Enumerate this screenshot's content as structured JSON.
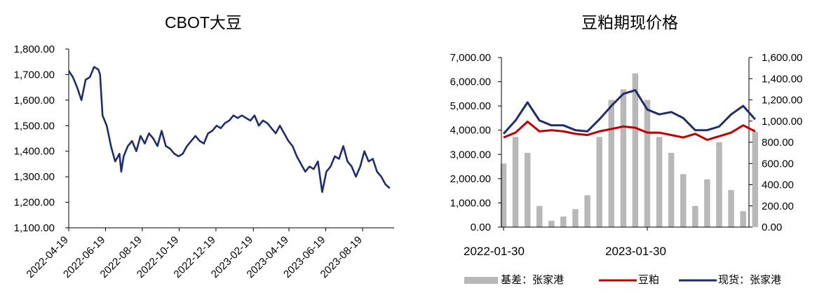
{
  "chart_data": [
    {
      "type": "line",
      "title": "CBOT大豆",
      "xlabel": "",
      "ylabel": "",
      "ylim": [
        1100,
        1800
      ],
      "y_ticks": [
        "1,100.00",
        "1,200.00",
        "1,300.00",
        "1,400.00",
        "1,500.00",
        "1,600.00",
        "1,700.00",
        "1,800.00"
      ],
      "x_ticks": [
        "2022-04-19",
        "2022-06-19",
        "2022-08-19",
        "2022-10-19",
        "2022-12-19",
        "2023-02-19",
        "2023-04-19",
        "2023-06-19",
        "2023-08-19"
      ],
      "grid": false,
      "colors": {
        "line": "#1f2d6b"
      },
      "series": [
        {
          "x": [
            "2022-04-19",
            "2022-04-26",
            "2022-05-03",
            "2022-05-10",
            "2022-05-17",
            "2022-05-24",
            "2022-05-31",
            "2022-06-07",
            "2022-06-10",
            "2022-06-14",
            "2022-06-21",
            "2022-06-28",
            "2022-07-05",
            "2022-07-12",
            "2022-07-15",
            "2022-07-19",
            "2022-07-26",
            "2022-08-02",
            "2022-08-09",
            "2022-08-16",
            "2022-08-23",
            "2022-08-30",
            "2022-09-06",
            "2022-09-13",
            "2022-09-20",
            "2022-09-27",
            "2022-10-04",
            "2022-10-11",
            "2022-10-18",
            "2022-10-25",
            "2022-11-01",
            "2022-11-08",
            "2022-11-15",
            "2022-11-22",
            "2022-11-29",
            "2022-12-06",
            "2022-12-13",
            "2022-12-20",
            "2022-12-27",
            "2023-01-03",
            "2023-01-10",
            "2023-01-17",
            "2023-01-24",
            "2023-01-31",
            "2023-02-07",
            "2023-02-14",
            "2023-02-21",
            "2023-02-28",
            "2023-03-07",
            "2023-03-14",
            "2023-03-21",
            "2023-03-28",
            "2023-04-04",
            "2023-04-11",
            "2023-04-18",
            "2023-04-25",
            "2023-05-02",
            "2023-05-09",
            "2023-05-16",
            "2023-05-23",
            "2023-05-30",
            "2023-06-06",
            "2023-06-13",
            "2023-06-20",
            "2023-06-27",
            "2023-07-04",
            "2023-07-11",
            "2023-07-18",
            "2023-07-25",
            "2023-08-01",
            "2023-08-08",
            "2023-08-15",
            "2023-08-22",
            "2023-08-29",
            "2023-09-05",
            "2023-09-12",
            "2023-09-19",
            "2023-09-26",
            "2023-10-03"
          ],
          "values": [
            1715,
            1690,
            1650,
            1600,
            1680,
            1690,
            1730,
            1720,
            1700,
            1540,
            1500,
            1420,
            1360,
            1390,
            1320,
            1380,
            1420,
            1440,
            1400,
            1460,
            1430,
            1470,
            1450,
            1420,
            1480,
            1420,
            1410,
            1390,
            1380,
            1390,
            1420,
            1440,
            1460,
            1440,
            1430,
            1470,
            1480,
            1500,
            1490,
            1510,
            1520,
            1540,
            1530,
            1540,
            1530,
            1520,
            1540,
            1500,
            1520,
            1510,
            1490,
            1470,
            1500,
            1470,
            1440,
            1420,
            1380,
            1350,
            1320,
            1340,
            1330,
            1360,
            1240,
            1320,
            1340,
            1380,
            1370,
            1420,
            1360,
            1340,
            1300,
            1340,
            1400,
            1360,
            1370,
            1320,
            1300,
            1270,
            1255
          ]
        }
      ]
    },
    {
      "type": "line",
      "title": "豆粕期现价格",
      "xlabel": "",
      "ylabel": "",
      "ylim": [
        0,
        7000
      ],
      "y2lim": [
        0,
        1600
      ],
      "y_ticks": [
        "0.00",
        "1,000.00",
        "2,000.00",
        "3,000.00",
        "4,000.00",
        "5,000.00",
        "6,000.00",
        "7,000.00"
      ],
      "y2_ticks": [
        "0.00",
        "200.00",
        "400.00",
        "600.00",
        "800.00",
        "1,000.00",
        "1,200.00",
        "1,400.00",
        "1,600.00"
      ],
      "x_ticks": [
        "2022-01-30",
        "2023-01-30"
      ],
      "grid": false,
      "legend_position": "bottom",
      "colors": {
        "basis": "#b8b8b8",
        "futures": "#c00000",
        "spot": "#1f2d6b"
      },
      "x_months": [
        "2022-01",
        "2022-02",
        "2022-03",
        "2022-04",
        "2022-05",
        "2022-06",
        "2022-07",
        "2022-08",
        "2022-09",
        "2022-10",
        "2022-11",
        "2022-12",
        "2023-01",
        "2023-02",
        "2023-03",
        "2023-04",
        "2023-05",
        "2023-06",
        "2023-07",
        "2023-08",
        "2023-09",
        "2023-10"
      ],
      "series": [
        {
          "name": "基差：张家港",
          "axis": "right",
          "kind": "bar",
          "values": [
            600,
            850,
            700,
            200,
            60,
            100,
            170,
            300,
            850,
            1200,
            1300,
            1450,
            1200,
            850,
            700,
            500,
            200,
            450,
            800,
            350,
            150,
            900
          ]
        },
        {
          "name": "豆粕",
          "axis": "left",
          "kind": "line",
          "values": [
            3700,
            3900,
            4350,
            3950,
            4000,
            3950,
            3850,
            3800,
            3950,
            4050,
            4150,
            4100,
            3900,
            3900,
            3800,
            3700,
            3850,
            3600,
            3750,
            3900,
            4200,
            3950
          ]
        },
        {
          "name": "现货：张家港",
          "axis": "left",
          "kind": "line",
          "values": [
            3850,
            4400,
            5150,
            4400,
            4200,
            4200,
            4000,
            3950,
            4450,
            5000,
            5500,
            5650,
            4850,
            4650,
            4750,
            4500,
            4000,
            4000,
            4150,
            4650,
            5000,
            4450
          ]
        }
      ]
    }
  ]
}
